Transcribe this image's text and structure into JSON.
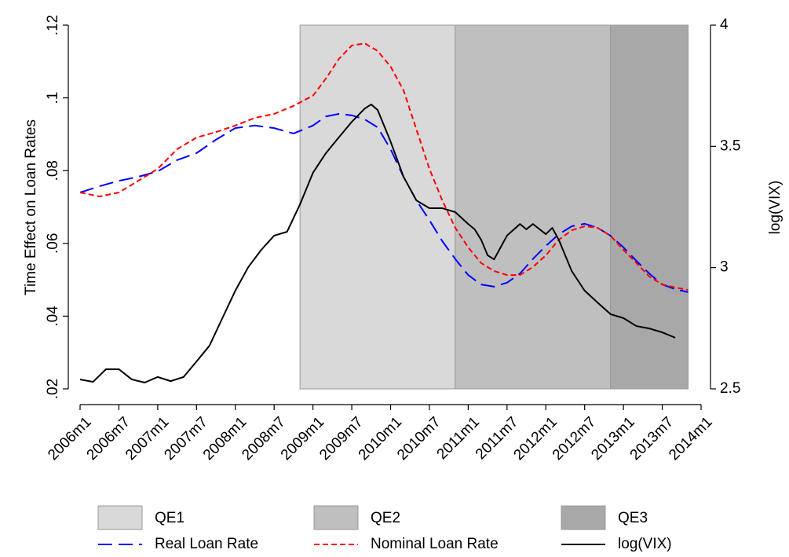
{
  "chart_data": {
    "type": "line",
    "y_label": "Time Effect on Loan Rates",
    "y2_label": "log(VIX)",
    "xlim": [
      "2006m1",
      "2014m1"
    ],
    "xticks": [
      "2006m1",
      "2006m7",
      "2007m1",
      "2007m7",
      "2008m1",
      "2008m7",
      "2009m1",
      "2009m7",
      "2010m1",
      "2010m7",
      "2011m1",
      "2011m7",
      "2012m1",
      "2012m7",
      "2013m1",
      "2013m7",
      "2014m1"
    ],
    "ylim": [
      0.02,
      0.12
    ],
    "yticks": [
      {
        "value": 0.02,
        "label": ".02"
      },
      {
        "value": 0.04,
        "label": ".04"
      },
      {
        "value": 0.06,
        "label": ".06"
      },
      {
        "value": 0.08,
        "label": ".08"
      },
      {
        "value": 0.1,
        "label": ".1"
      },
      {
        "value": 0.12,
        "label": ".12"
      }
    ],
    "y2lim": [
      2.5,
      4
    ],
    "y2ticks": [
      2.5,
      3,
      3.5,
      4
    ],
    "bands": [
      {
        "name": "QE1",
        "start": "2008m11",
        "end": "2010m11",
        "color": "#d9d9d9"
      },
      {
        "name": "QE2",
        "start": "2010m11",
        "end": "2012m11",
        "color": "#bfbfbf"
      },
      {
        "name": "QE3",
        "start": "2012m11",
        "end": "2013m11",
        "color": "#a8a8a8"
      }
    ],
    "series": [
      {
        "name": "Real Loan Rate",
        "color": "#0000ff",
        "dash": "18,8",
        "x": [
          "2006m1",
          "2006m4",
          "2006m7",
          "2006m10",
          "2007m1",
          "2007m4",
          "2007m7",
          "2007m10",
          "2008m1",
          "2008m4",
          "2008m7",
          "2008m10",
          "2009m1",
          "2009m3",
          "2009m5",
          "2009m7",
          "2009m9",
          "2009m11",
          "2010m1",
          "2010m3",
          "2010m5",
          "2010m7",
          "2010m9",
          "2010m11",
          "2011m1",
          "2011m3",
          "2011m5",
          "2011m7",
          "2011m9",
          "2011m11",
          "2012m1",
          "2012m3",
          "2012m5",
          "2012m7",
          "2012m9",
          "2012m11",
          "2013m1",
          "2013m3",
          "2013m5",
          "2013m7",
          "2013m9",
          "2013m11"
        ],
        "values": [
          0.074,
          0.0757,
          0.0772,
          0.0783,
          0.0798,
          0.0829,
          0.0848,
          0.0885,
          0.0917,
          0.0924,
          0.0917,
          0.0902,
          0.0924,
          0.0949,
          0.0956,
          0.0952,
          0.0941,
          0.0919,
          0.0859,
          0.0783,
          0.0718,
          0.0664,
          0.0606,
          0.0557,
          0.0513,
          0.0487,
          0.0481,
          0.0492,
          0.0517,
          0.0557,
          0.0593,
          0.0625,
          0.0647,
          0.0654,
          0.0643,
          0.0621,
          0.0589,
          0.0552,
          0.0517,
          0.0487,
          0.0474,
          0.0466
        ]
      },
      {
        "name": "Nominal Loan Rate",
        "color": "#ff0000",
        "dash": "7,4",
        "x": [
          "2006m1",
          "2006m4",
          "2006m7",
          "2006m10",
          "2007m1",
          "2007m4",
          "2007m7",
          "2007m10",
          "2008m1",
          "2008m4",
          "2008m7",
          "2008m10",
          "2009m1",
          "2009m3",
          "2009m5",
          "2009m7",
          "2009m9",
          "2009m11",
          "2010m1",
          "2010m3",
          "2010m5",
          "2010m7",
          "2010m9",
          "2010m11",
          "2011m1",
          "2011m3",
          "2011m5",
          "2011m7",
          "2011m9",
          "2011m11",
          "2012m1",
          "2012m3",
          "2012m5",
          "2012m7",
          "2012m9",
          "2012m11",
          "2013m1",
          "2013m3",
          "2013m5",
          "2013m7",
          "2013m9",
          "2013m11"
        ],
        "values": [
          0.074,
          0.0729,
          0.074,
          0.0772,
          0.0805,
          0.0859,
          0.0891,
          0.0906,
          0.0924,
          0.0945,
          0.0956,
          0.0978,
          0.1006,
          0.1053,
          0.1107,
          0.1144,
          0.115,
          0.1129,
          0.1086,
          0.1021,
          0.0913,
          0.0805,
          0.0718,
          0.0643,
          0.0589,
          0.0546,
          0.0524,
          0.0513,
          0.0513,
          0.0535,
          0.0567,
          0.061,
          0.0636,
          0.0647,
          0.0643,
          0.0621,
          0.0582,
          0.0546,
          0.0509,
          0.0487,
          0.0479,
          0.0472
        ]
      },
      {
        "name": "log(VIX)",
        "color": "#000000",
        "dash": "none",
        "axis": "y2",
        "x": [
          "2006m1",
          "2006m3",
          "2006m5",
          "2006m7",
          "2006m9",
          "2006m11",
          "2007m1",
          "2007m3",
          "2007m5",
          "2007m7",
          "2007m9",
          "2007m11",
          "2008m1",
          "2008m3",
          "2008m5",
          "2008m7",
          "2008m9",
          "2008m11",
          "2009m1",
          "2009m3",
          "2009m5",
          "2009m7",
          "2009m9",
          "2009m10",
          "2009m11",
          "2010m1",
          "2010m3",
          "2010m5",
          "2010m7",
          "2010m9",
          "2010m11",
          "2011m1",
          "2011m2",
          "2011m3",
          "2011m4",
          "2011m5",
          "2011m7",
          "2011m9",
          "2011m10",
          "2011m11",
          "2012m1",
          "2012m2",
          "2012m3",
          "2012m5",
          "2012m7",
          "2012m9",
          "2012m11",
          "2013m1",
          "2013m3",
          "2013m5",
          "2013m7",
          "2013m9"
        ],
        "values": [
          2.539,
          2.529,
          2.581,
          2.581,
          2.539,
          2.526,
          2.549,
          2.532,
          2.549,
          2.613,
          2.678,
          2.792,
          2.905,
          3.002,
          3.073,
          3.132,
          3.148,
          3.261,
          3.391,
          3.472,
          3.537,
          3.601,
          3.656,
          3.673,
          3.65,
          3.52,
          3.375,
          3.277,
          3.245,
          3.245,
          3.229,
          3.18,
          3.158,
          3.115,
          3.051,
          3.034,
          3.132,
          3.18,
          3.158,
          3.18,
          3.138,
          3.164,
          3.115,
          2.986,
          2.905,
          2.856,
          2.808,
          2.792,
          2.759,
          2.749,
          2.733,
          2.711
        ]
      }
    ]
  }
}
